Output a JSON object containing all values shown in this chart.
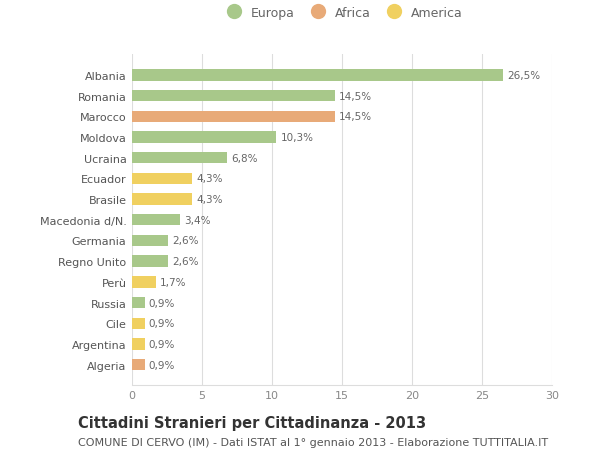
{
  "countries": [
    "Albania",
    "Romania",
    "Marocco",
    "Moldova",
    "Ucraina",
    "Ecuador",
    "Brasile",
    "Macedonia d/N.",
    "Germania",
    "Regno Unito",
    "Perù",
    "Russia",
    "Cile",
    "Argentina",
    "Algeria"
  ],
  "values": [
    26.5,
    14.5,
    14.5,
    10.3,
    6.8,
    4.3,
    4.3,
    3.4,
    2.6,
    2.6,
    1.7,
    0.9,
    0.9,
    0.9,
    0.9
  ],
  "labels": [
    "26,5%",
    "14,5%",
    "14,5%",
    "10,3%",
    "6,8%",
    "4,3%",
    "4,3%",
    "3,4%",
    "2,6%",
    "2,6%",
    "1,7%",
    "0,9%",
    "0,9%",
    "0,9%",
    "0,9%"
  ],
  "continent": [
    "Europa",
    "Europa",
    "Africa",
    "Europa",
    "Europa",
    "America",
    "America",
    "Europa",
    "Europa",
    "Europa",
    "America",
    "Europa",
    "America",
    "America",
    "Africa"
  ],
  "colors": {
    "Europa": "#a8c88a",
    "Africa": "#e8aa78",
    "America": "#f0d060"
  },
  "legend_order": [
    "Europa",
    "Africa",
    "America"
  ],
  "xlim": [
    0,
    30
  ],
  "xticks": [
    0,
    5,
    10,
    15,
    20,
    25,
    30
  ],
  "title": "Cittadini Stranieri per Cittadinanza - 2013",
  "subtitle": "COMUNE DI CERVO (IM) - Dati ISTAT al 1° gennaio 2013 - Elaborazione TUTTITALIA.IT",
  "bg_color": "#ffffff",
  "grid_color": "#dddddd",
  "bar_height": 0.55,
  "title_fontsize": 10.5,
  "subtitle_fontsize": 8,
  "label_fontsize": 7.5,
  "tick_fontsize": 8,
  "legend_fontsize": 9
}
